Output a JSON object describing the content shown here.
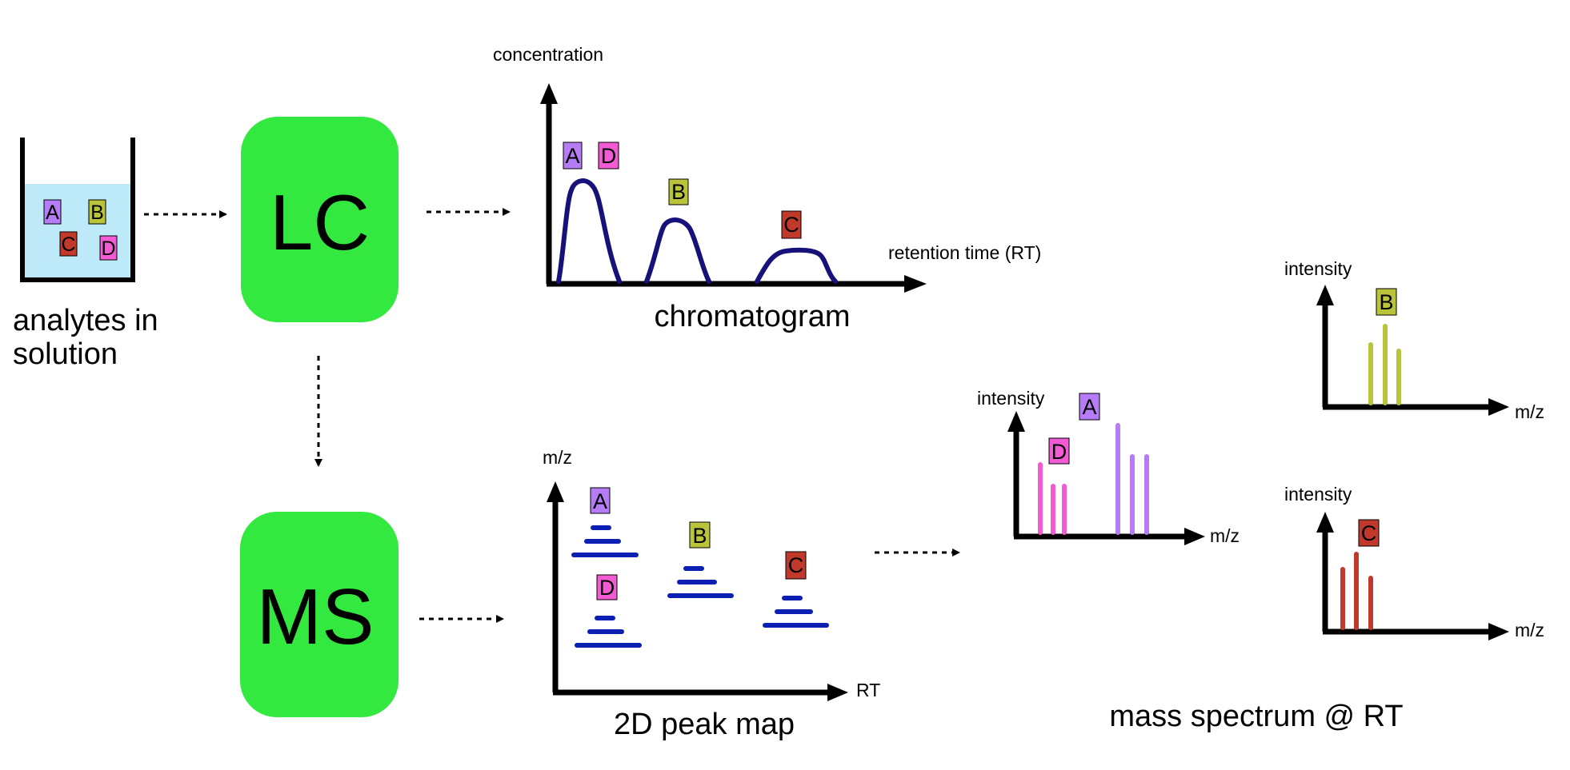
{
  "labels": {
    "analytes_line1": "analytes in",
    "analytes_line2": "solution",
    "lc": "LC",
    "ms": "MS",
    "chromatogram_title": "chromatogram",
    "chromatogram_y": "concentration",
    "chromatogram_x": "retention time (RT)",
    "peakmap_title": "2D peak map",
    "peakmap_y": "m/z",
    "peakmap_x": "RT",
    "spectrum_title": "mass spectrum @ RT",
    "spec_ad_y": "intensity",
    "spec_ad_x": "m/z",
    "spec_b_y": "intensity",
    "spec_b_x": "m/z",
    "spec_c_y": "intensity",
    "spec_c_x": "m/z"
  },
  "analytes": {
    "A": {
      "label": "A",
      "color": "#b57cf5"
    },
    "B": {
      "label": "B",
      "color": "#b9c43b"
    },
    "C": {
      "label": "C",
      "color": "#c0392b"
    },
    "D": {
      "label": "D",
      "color": "#f25bd3"
    }
  },
  "colors": {
    "block_green": "#33e83f",
    "solution_blue": "#bde9f8",
    "chromatogram_curve": "#16127a",
    "peakmap_bars": "#0b1fb3",
    "spectrum_a": "#b57cf5",
    "spectrum_b": "#b9c43b",
    "spectrum_c": "#c0392b",
    "spectrum_d": "#f25bd3"
  }
}
